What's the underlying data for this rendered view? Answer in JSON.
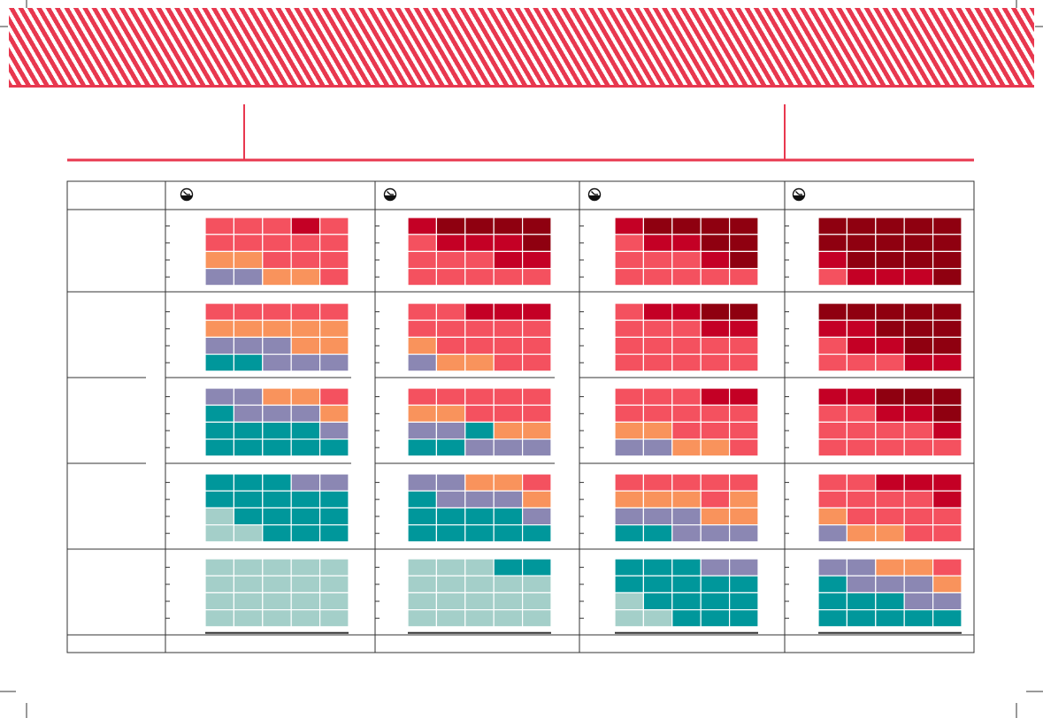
{
  "colors": {
    "accent": "#e8384f",
    "dark_red": "#8f0010",
    "crimson": "#c40025",
    "coral": "#f4515f",
    "orange": "#f9935c",
    "lavender": "#8b87b3",
    "teal": "#00979b",
    "light_teal": "#a4cfc9",
    "grid_line": "#333333"
  },
  "icons": [
    "clock-icon",
    "clock-icon",
    "clock-icon",
    "clock-icon"
  ],
  "chart_data": {
    "type": "heatmap",
    "rows": 5,
    "columns": 4,
    "cell_grid": [
      4,
      5
    ],
    "color_key": {
      "d": "dark_red",
      "r": "crimson",
      "c": "coral",
      "o": "orange",
      "l": "lavender",
      "t": "teal",
      "p": "light_teal"
    },
    "panels": [
      [
        [
          "cccrc",
          "ccccc",
          "ooccc",
          "llooc"
        ],
        [
          "rdddd",
          "crrrd",
          "cccrr",
          "ccccc"
        ],
        [
          "rdddd",
          "crrdd",
          "cccrd",
          "ccccc"
        ],
        [
          "ddddd",
          "ddddd",
          "rdddd",
          "crrrd"
        ]
      ],
      [
        [
          "ccccc",
          "ooooo",
          "llloo",
          "ttlll"
        ],
        [
          "ccrrr",
          "ccccc",
          "occcc",
          "loocc"
        ],
        [
          "crrdd",
          "cccrr",
          "ccccc",
          "ccccc"
        ],
        [
          "ddddd",
          "rrddd",
          "crrdd",
          "cccrr"
        ]
      ],
      [
        [
          "llooc",
          "tlllo",
          "ttttl",
          "ttttt"
        ],
        [
          "ccccc",
          "ooccc",
          "lltoo",
          "ttlll"
        ],
        [
          "cccrr",
          "ccccc",
          "ooccc",
          "llooc"
        ],
        [
          "rrddd",
          "ccrrd",
          "ccccr",
          "ccccc"
        ]
      ],
      [
        [
          "tttll",
          "ttttt",
          "ptttt",
          "ppttt"
        ],
        [
          "llooc",
          "tlllo",
          "ttttl",
          "ttttt"
        ],
        [
          "ccccc",
          "oooco",
          "llloo",
          "ttlll"
        ],
        [
          "ccrrr",
          "ccccr",
          "occcc",
          "loocc"
        ]
      ],
      [
        [
          "ppppp",
          "ppppp",
          "ppppp",
          "ppppp"
        ],
        [
          "ppptt",
          "ppppp",
          "ppppp",
          "ppppp"
        ],
        [
          "tttll",
          "ttttt",
          "ptttt",
          "ppttt"
        ],
        [
          "llooc",
          "tlllo",
          "tttll",
          "ttttt"
        ]
      ]
    ]
  }
}
